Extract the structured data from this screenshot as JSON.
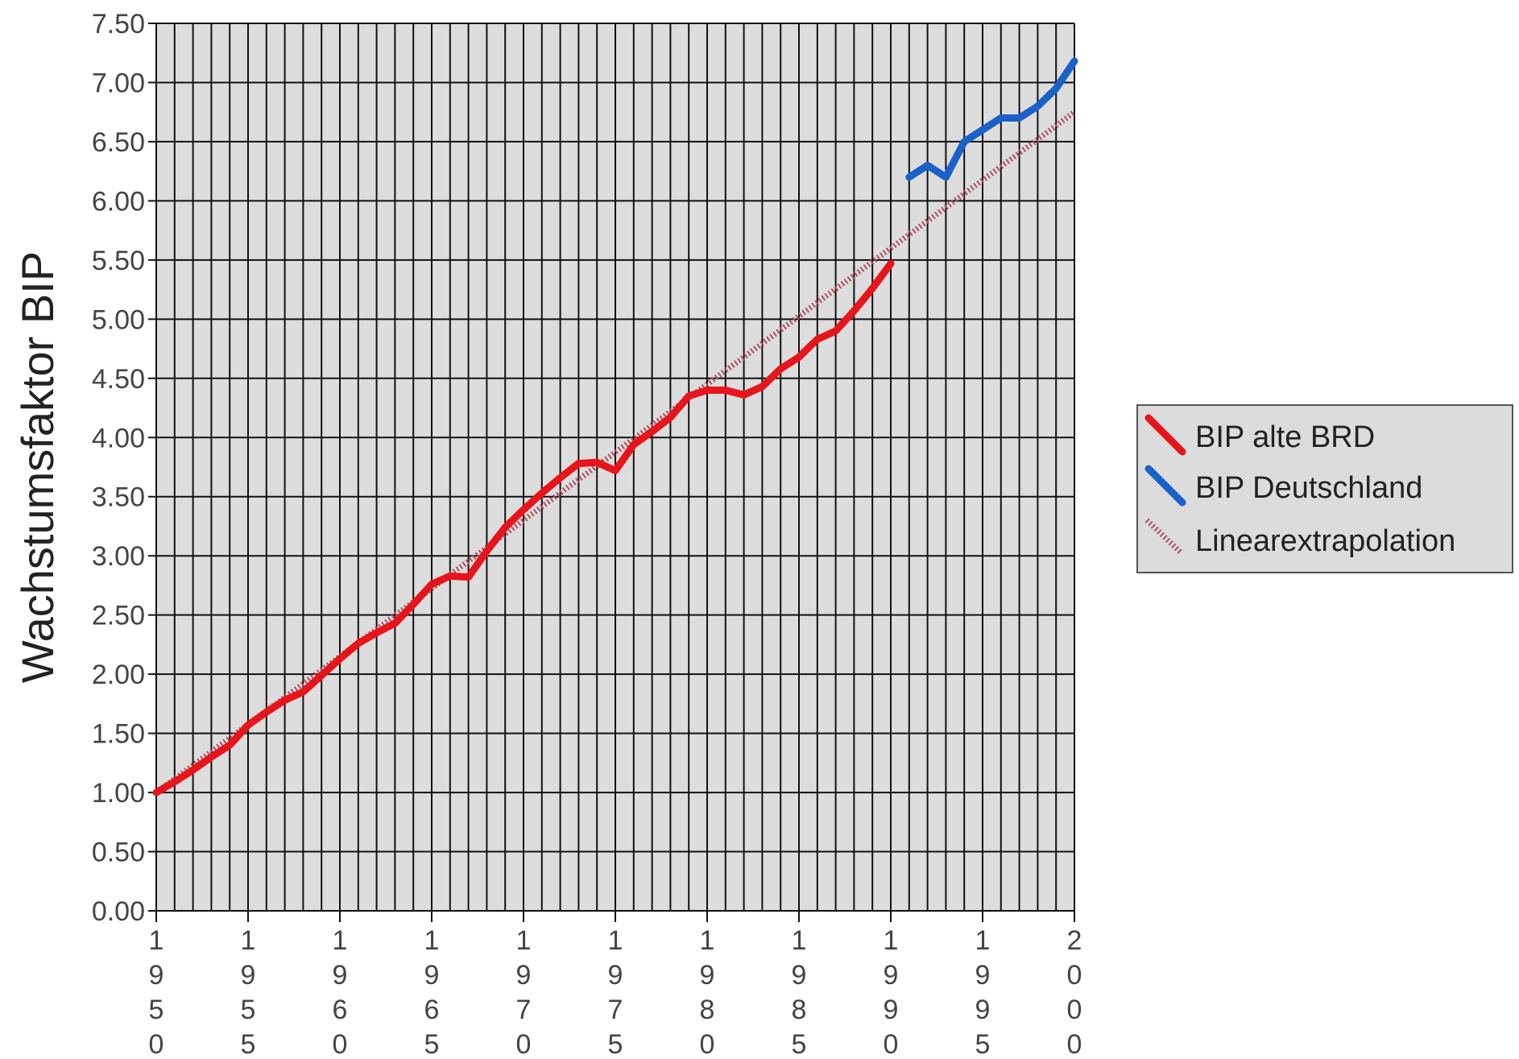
{
  "chart_data": {
    "type": "line",
    "title": "",
    "xlabel": "",
    "ylabel": "Wachstumsfaktor BIP",
    "xlim": [
      1950,
      2000
    ],
    "ylim": [
      0,
      7.5
    ],
    "grid": true,
    "legend_position": "right",
    "y_ticks": [
      "0.00",
      "0.50",
      "1.00",
      "1.50",
      "2.00",
      "2.50",
      "3.00",
      "3.50",
      "4.00",
      "4.50",
      "5.00",
      "5.50",
      "6.00",
      "6.50",
      "7.00",
      "7.50"
    ],
    "x_ticks": [
      {
        "year": 1950,
        "label": "1950"
      },
      {
        "year": 1955,
        "label": "1955"
      },
      {
        "year": 1960,
        "label": "1960"
      },
      {
        "year": 1965,
        "label": "1965"
      },
      {
        "year": 1970,
        "label": "1970"
      },
      {
        "year": 1975,
        "label": "1975"
      },
      {
        "year": 1980,
        "label": "1980"
      },
      {
        "year": 1985,
        "label": "1985"
      },
      {
        "year": 1990,
        "label": "1990"
      },
      {
        "year": 1995,
        "label": "1995"
      },
      {
        "year": 2000,
        "label": "2000"
      }
    ],
    "series": [
      {
        "name": "BIP alte BRD",
        "color": "#e8141c",
        "style": "solid",
        "x": [
          1950,
          1951,
          1952,
          1953,
          1954,
          1955,
          1956,
          1957,
          1958,
          1959,
          1960,
          1961,
          1962,
          1963,
          1964,
          1965,
          1966,
          1967,
          1968,
          1969,
          1970,
          1971,
          1972,
          1973,
          1974,
          1975,
          1976,
          1977,
          1978,
          1979,
          1980,
          1981,
          1982,
          1983,
          1984,
          1985,
          1986,
          1987,
          1988,
          1989,
          1990
        ],
        "y": [
          1.0,
          1.09,
          1.19,
          1.3,
          1.4,
          1.57,
          1.68,
          1.78,
          1.85,
          1.99,
          2.13,
          2.26,
          2.35,
          2.43,
          2.59,
          2.76,
          2.83,
          2.82,
          3.04,
          3.24,
          3.39,
          3.53,
          3.66,
          3.78,
          3.79,
          3.72,
          3.94,
          4.05,
          4.17,
          4.35,
          4.4,
          4.4,
          4.36,
          4.43,
          4.58,
          4.68,
          4.83,
          4.9,
          5.07,
          5.26,
          5.47
        ]
      },
      {
        "name": "BIP Deutschland",
        "color": "#1a62c8",
        "style": "solid",
        "x": [
          1991,
          1992,
          1993,
          1994,
          1995,
          1996,
          1997,
          1998,
          1999,
          2000
        ],
        "y": [
          6.2,
          6.3,
          6.2,
          6.5,
          6.6,
          6.7,
          6.7,
          6.8,
          6.95,
          7.18
        ]
      },
      {
        "name": "Linearextrapolation",
        "color": "#b0505e",
        "style": "dotted",
        "x": [
          1950,
          2000
        ],
        "y": [
          1.0,
          6.75
        ]
      }
    ]
  }
}
